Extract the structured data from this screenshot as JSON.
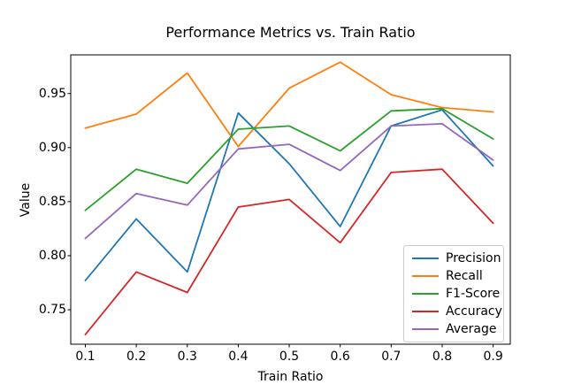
{
  "chart_data": {
    "type": "line",
    "title": "Performance Metrics vs. Train Ratio",
    "xlabel": "Train Ratio",
    "ylabel": "Value",
    "x": [
      0.1,
      0.2,
      0.3,
      0.4,
      0.5,
      0.6,
      0.7,
      0.8,
      0.9
    ],
    "x_tick_labels": [
      "0.1",
      "0.2",
      "0.3",
      "0.4",
      "0.5",
      "0.6",
      "0.7",
      "0.8",
      "0.9"
    ],
    "y_ticks": [
      0.75,
      0.8,
      0.85,
      0.9,
      0.95
    ],
    "y_tick_labels": [
      "0.75",
      "0.80",
      "0.85",
      "0.90",
      "0.95"
    ],
    "xlim": [
      0.0714,
      0.9336
    ],
    "ylim": [
      0.7181,
      0.9858
    ],
    "grid": false,
    "legend_position": "lower right",
    "axis_color": "#000000",
    "background_color": "#ffffff",
    "series": [
      {
        "name": "Precision",
        "color": "#1f77b4",
        "values": [
          0.777,
          0.834,
          0.785,
          0.932,
          0.885,
          0.827,
          0.92,
          0.935,
          0.883
        ]
      },
      {
        "name": "Recall",
        "color": "#ff7f0e",
        "values": [
          0.918,
          0.931,
          0.969,
          0.901,
          0.955,
          0.979,
          0.949,
          0.937,
          0.933
        ]
      },
      {
        "name": "F1-Score",
        "color": "#2ca02c",
        "values": [
          0.842,
          0.88,
          0.867,
          0.917,
          0.92,
          0.897,
          0.934,
          0.936,
          0.908
        ]
      },
      {
        "name": "Accuracy",
        "color": "#d62728",
        "values": [
          0.727,
          0.785,
          0.766,
          0.845,
          0.852,
          0.812,
          0.877,
          0.88,
          0.83
        ]
      },
      {
        "name": "Average",
        "color": "#9467bd",
        "values": [
          0.816,
          0.8575,
          0.8468,
          0.8988,
          0.903,
          0.8788,
          0.92,
          0.922,
          0.8885
        ]
      }
    ]
  }
}
